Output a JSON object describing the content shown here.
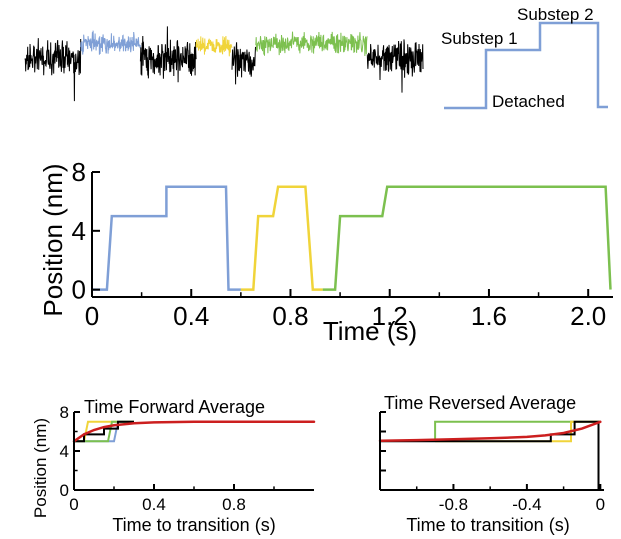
{
  "colors": {
    "trace_black": "#000000",
    "segment_blue": "#7f9fd6",
    "segment_yellow": "#f0d43a",
    "segment_green": "#7cc04f",
    "fit_red": "#cc1f1f",
    "schematic_blue": "#7f9fd6"
  },
  "schematic": {
    "labels": {
      "substep2": "Substep 2",
      "substep1": "Substep 1",
      "detached": "Detached"
    }
  },
  "chart_data": [
    {
      "id": "raw-trace",
      "type": "line",
      "title": "",
      "xlabel": "",
      "ylabel": "",
      "segments": [
        {
          "color": "black",
          "x": [
            0.0,
            0.14
          ]
        },
        {
          "color": "blue",
          "x": [
            0.14,
            0.29
          ]
        },
        {
          "color": "black",
          "x": [
            0.29,
            0.43
          ]
        },
        {
          "color": "yellow",
          "x": [
            0.43,
            0.52
          ]
        },
        {
          "color": "black",
          "x": [
            0.52,
            0.58
          ]
        },
        {
          "color": "green",
          "x": [
            0.58,
            0.86
          ]
        },
        {
          "color": "black",
          "x": [
            0.86,
            1.0
          ]
        }
      ]
    },
    {
      "id": "idealized-trace",
      "type": "line",
      "title": "",
      "xlabel": "Time (s)",
      "ylabel": "Position (nm)",
      "xlim": [
        0,
        2.1
      ],
      "ylim": [
        -0.5,
        8
      ],
      "xticks": [
        "0",
        "0.4",
        "0.8",
        "1.2",
        "1.6",
        "2.0"
      ],
      "xtick_values": [
        0,
        0.4,
        0.8,
        1.2,
        1.6,
        2.0
      ],
      "yticks": [
        "0",
        "4",
        "8"
      ],
      "ytick_values": [
        0,
        4,
        8
      ],
      "series": [
        {
          "color": "blue",
          "x": [
            0,
            0.06,
            0.08,
            0.3,
            0.3,
            0.54,
            0.55,
            0.6
          ],
          "y": [
            0,
            0,
            5,
            5,
            7,
            7,
            0,
            0
          ]
        },
        {
          "color": "yellow",
          "x": [
            0.6,
            0.65,
            0.67,
            0.73,
            0.75,
            0.86,
            0.89,
            0.93
          ],
          "y": [
            0,
            0,
            5,
            5,
            7,
            7,
            0,
            0
          ]
        },
        {
          "color": "green",
          "x": [
            0.93,
            0.98,
            1.0,
            1.17,
            1.19,
            2.07,
            2.09
          ],
          "y": [
            0,
            0,
            5,
            5,
            7,
            7,
            0
          ]
        }
      ]
    },
    {
      "id": "forward-average",
      "type": "line",
      "title": "Time Forward Average",
      "xlabel": "Time to transition (s)",
      "ylabel": "Position (nm)",
      "xlim": [
        0,
        1.2
      ],
      "ylim": [
        0,
        8
      ],
      "xticks": [
        "0",
        "0.4",
        "0.8"
      ],
      "xtick_values": [
        0,
        0.4,
        0.8
      ],
      "yticks": [
        "0",
        "4",
        "8"
      ],
      "ytick_values": [
        0,
        4,
        8
      ],
      "series": [
        {
          "color": "yellow",
          "x": [
            0,
            0.05,
            0.07,
            0.3
          ],
          "y": [
            5,
            5,
            7,
            7
          ]
        },
        {
          "color": "blue",
          "x": [
            0,
            0.2,
            0.22,
            0.3
          ],
          "y": [
            5,
            5,
            7,
            7
          ]
        },
        {
          "color": "green",
          "x": [
            0,
            0.17,
            0.19,
            0.3
          ],
          "y": [
            5,
            5,
            7,
            7
          ]
        },
        {
          "color": "black",
          "x": [
            0,
            0.05,
            0.05,
            0.15,
            0.15,
            0.22,
            0.22,
            0.3
          ],
          "y": [
            5,
            5,
            5.7,
            5.7,
            6.3,
            6.3,
            7,
            7
          ]
        },
        {
          "color": "red",
          "name": "",
          "fit": "exponential",
          "x": [
            0,
            0.05,
            0.1,
            0.15,
            0.2,
            0.3,
            0.4,
            0.6,
            0.8,
            1.0,
            1.2
          ],
          "y": [
            5.0,
            5.7,
            6.15,
            6.45,
            6.64,
            6.85,
            6.93,
            6.99,
            7.0,
            7.0,
            7.0
          ]
        }
      ]
    },
    {
      "id": "reversed-average",
      "type": "line",
      "title": "Time Reversed Average",
      "xlabel": "Time to transition (s)",
      "ylabel": "",
      "xlim": [
        -1.2,
        0.02
      ],
      "ylim": [
        0,
        8
      ],
      "xticks": [
        "-0.8",
        "-0.4",
        "0"
      ],
      "xtick_values": [
        -0.8,
        -0.4,
        0
      ],
      "series": [
        {
          "color": "green",
          "x": [
            -0.9,
            -0.9,
            -0.01,
            -0.01
          ],
          "y": [
            5,
            7,
            7,
            0
          ]
        },
        {
          "color": "yellow",
          "x": [
            -0.9,
            -0.16,
            -0.16,
            -0.01
          ],
          "y": [
            5,
            5,
            7,
            7
          ]
        },
        {
          "color": "black",
          "x": [
            -1.2,
            -0.27,
            -0.27,
            -0.14,
            -0.14,
            -0.01,
            -0.01
          ],
          "y": [
            5,
            5,
            5.7,
            5.7,
            7,
            7,
            0
          ]
        },
        {
          "color": "red",
          "name": "",
          "fit": "exponential",
          "x": [
            -1.2,
            -1.0,
            -0.8,
            -0.6,
            -0.4,
            -0.3,
            -0.2,
            -0.1,
            0
          ],
          "y": [
            5.05,
            5.12,
            5.2,
            5.3,
            5.45,
            5.6,
            5.85,
            6.3,
            7.0
          ]
        }
      ]
    }
  ]
}
